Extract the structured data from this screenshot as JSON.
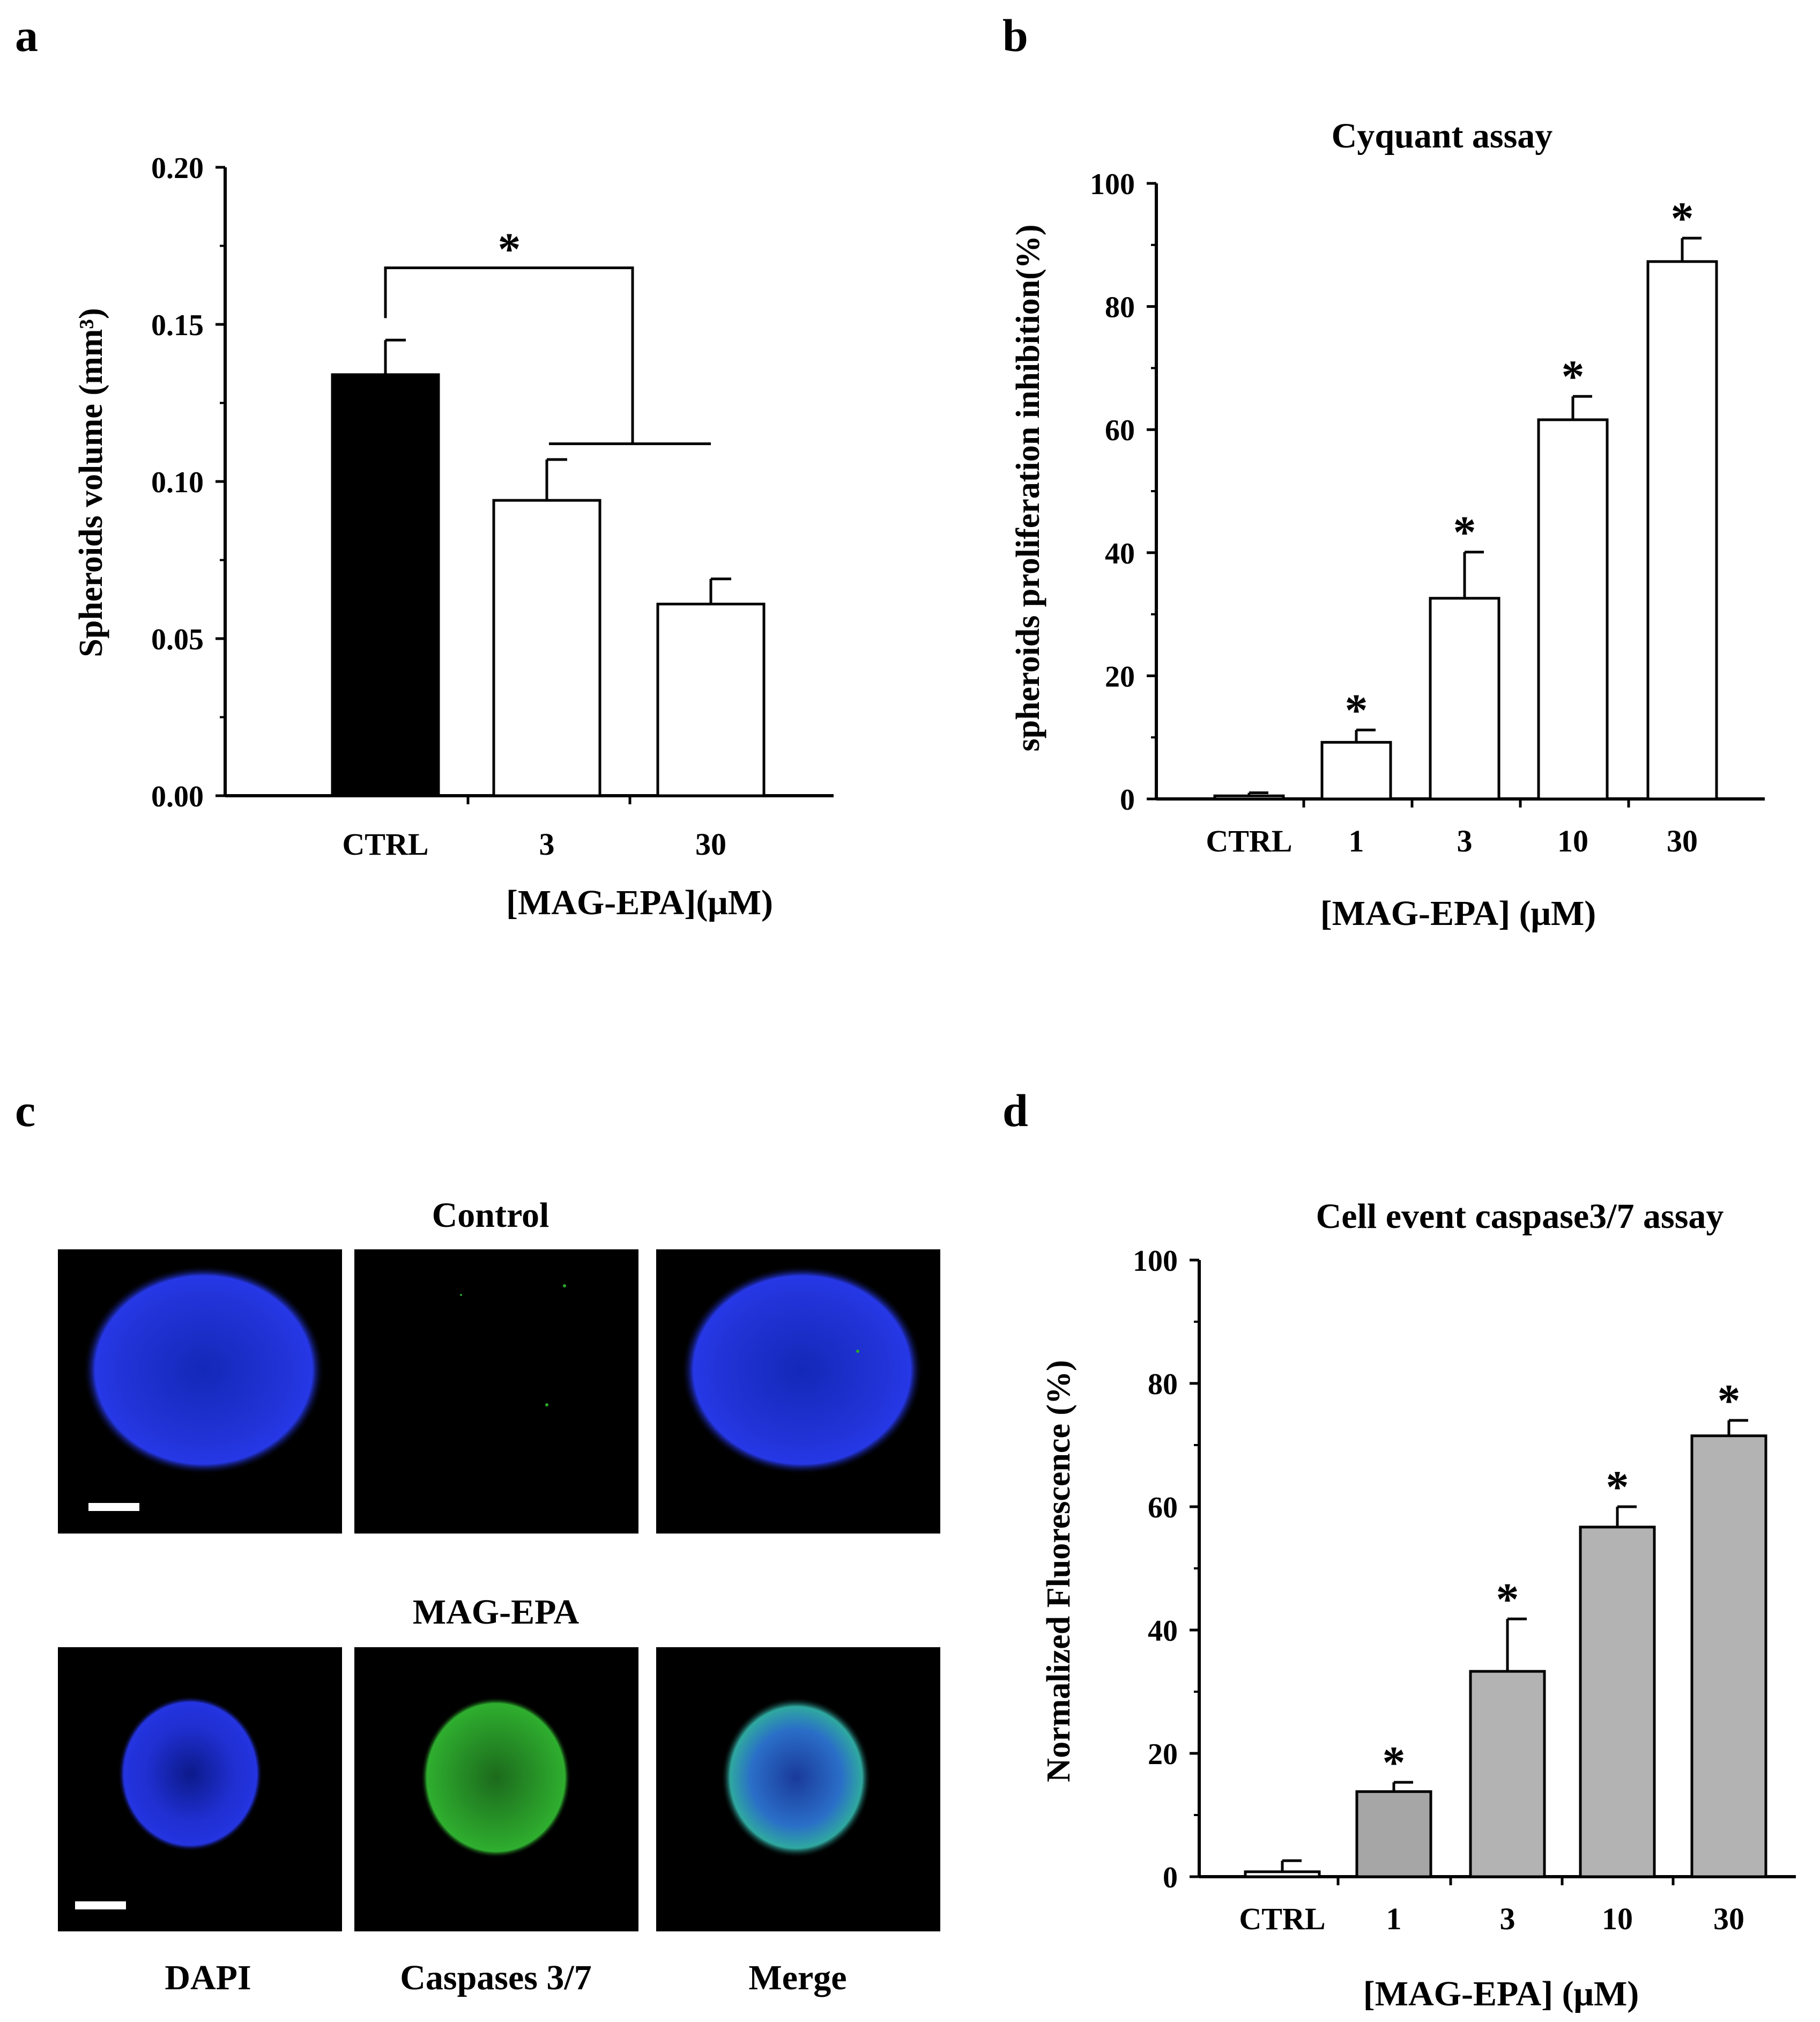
{
  "panel_labels": {
    "a": "a",
    "b": "b",
    "c": "c",
    "d": "d"
  },
  "colors": {
    "black_bar": "#000000",
    "white_bar": "#ffffff",
    "gray_bar": "#b3b3b3",
    "dapi": "#1f2fd6",
    "caspase": "#2aa82a"
  },
  "chart_data": [
    {
      "id": "a",
      "type": "bar",
      "title": "",
      "xlabel": "[MAG-EPA](μM)",
      "ylabel": "Spheroids volume (mm³)",
      "categories": [
        "CTRL",
        "3",
        "30"
      ],
      "values": [
        0.134,
        0.094,
        0.061
      ],
      "errors": [
        0.011,
        0.013,
        0.008
      ],
      "bar_colors": [
        "#000000",
        "#ffffff",
        "#ffffff"
      ],
      "ylim": [
        0,
        0.2
      ],
      "yticks": [
        "0.00",
        "0.05",
        "0.10",
        "0.15",
        "0.20"
      ],
      "significance": "*"
    },
    {
      "id": "b",
      "type": "bar",
      "title": "Cyquant assay",
      "xlabel": "[MAG-EPA] (μM)",
      "ylabel": "spheroids proliferation  inhibition(%)",
      "categories": [
        "CTRL",
        "1",
        "3",
        "10",
        "30"
      ],
      "values": [
        0.5,
        9.2,
        32.6,
        61.6,
        87.3
      ],
      "errors": [
        0.5,
        2.0,
        7.5,
        3.8,
        3.8
      ],
      "stars": [
        "",
        "*",
        "*",
        "*",
        "*"
      ],
      "ylim": [
        0,
        100
      ],
      "yticks": [
        "0",
        "20",
        "40",
        "60",
        "80",
        "100"
      ]
    },
    {
      "id": "d",
      "type": "bar",
      "title": "Cell event caspase3/7 assay",
      "xlabel": "[MAG-EPA] (μM)",
      "ylabel": "Normalized Fluorescence (%)",
      "categories": [
        "CTRL",
        "1",
        "3",
        "10",
        "30"
      ],
      "values": [
        0.8,
        13.8,
        33.3,
        56.7,
        71.5
      ],
      "errors": [
        1.8,
        1.5,
        8.5,
        3.3,
        2.5
      ],
      "stars": [
        "",
        "*",
        "*",
        "*",
        "*"
      ],
      "bar_colors": [
        "#ffffff",
        "#a6a6a6",
        "#b3b3b3",
        "#b3b3b3",
        "#b3b3b3"
      ],
      "ylim": [
        0,
        100
      ],
      "yticks": [
        "0",
        "20",
        "40",
        "60",
        "80",
        "100"
      ]
    }
  ],
  "panel_c": {
    "row_titles": [
      "Control",
      "MAG-EPA"
    ],
    "column_labels": [
      "DAPI",
      "Caspases 3/7",
      "Merge"
    ]
  }
}
